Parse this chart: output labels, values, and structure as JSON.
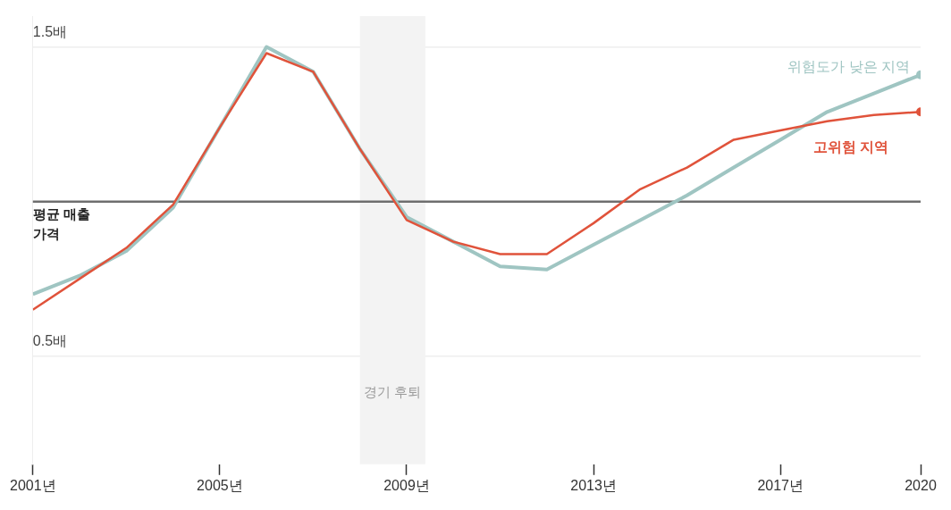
{
  "chart_data": {
    "type": "line",
    "x": [
      2001,
      2002,
      2003,
      2004,
      2005,
      2006,
      2007,
      2008,
      2009,
      2010,
      2011,
      2012,
      2013,
      2014,
      2015,
      2016,
      2017,
      2018,
      2019,
      2020
    ],
    "series": [
      {
        "name": "위험도가 낮은 지역",
        "color": "#9fc5c2",
        "values": [
          0.7,
          0.76,
          0.84,
          0.98,
          1.24,
          1.5,
          1.42,
          1.17,
          0.95,
          0.87,
          0.79,
          0.78,
          0.86,
          0.94,
          1.02,
          1.11,
          1.2,
          1.29,
          1.35,
          1.41
        ]
      },
      {
        "name": "고위험 지역",
        "color": "#e0533b",
        "values": [
          0.65,
          0.75,
          0.85,
          0.99,
          1.24,
          1.48,
          1.42,
          1.17,
          0.94,
          0.87,
          0.83,
          0.83,
          0.93,
          1.04,
          1.11,
          1.2,
          1.23,
          1.26,
          1.28,
          1.29
        ]
      }
    ],
    "xlim": [
      2001,
      2020
    ],
    "xticks": [
      {
        "value": 2001,
        "label": "2001년"
      },
      {
        "value": 2005,
        "label": "2005년"
      },
      {
        "value": 2009,
        "label": "2009년"
      },
      {
        "value": 2013,
        "label": "2013년"
      },
      {
        "value": 2017,
        "label": "2017년"
      },
      2020
    ],
    "ylim": [
      0.15,
      1.6
    ],
    "yticks": [
      {
        "value": 0.5,
        "label": "0.5배"
      },
      {
        "value": 1.5,
        "label": "1.5배"
      }
    ],
    "grid": "y",
    "legend": false,
    "line_style": "solid",
    "ref_lines": [
      {
        "axis": "y",
        "value": 1,
        "label": "평균 매출 가격",
        "color": "#6e6e6e"
      }
    ],
    "bands": [
      {
        "axis": "x",
        "from": 2008,
        "to": 2009.4,
        "label": "경기 후퇴",
        "color": "#f3f3f3"
      }
    ]
  }
}
